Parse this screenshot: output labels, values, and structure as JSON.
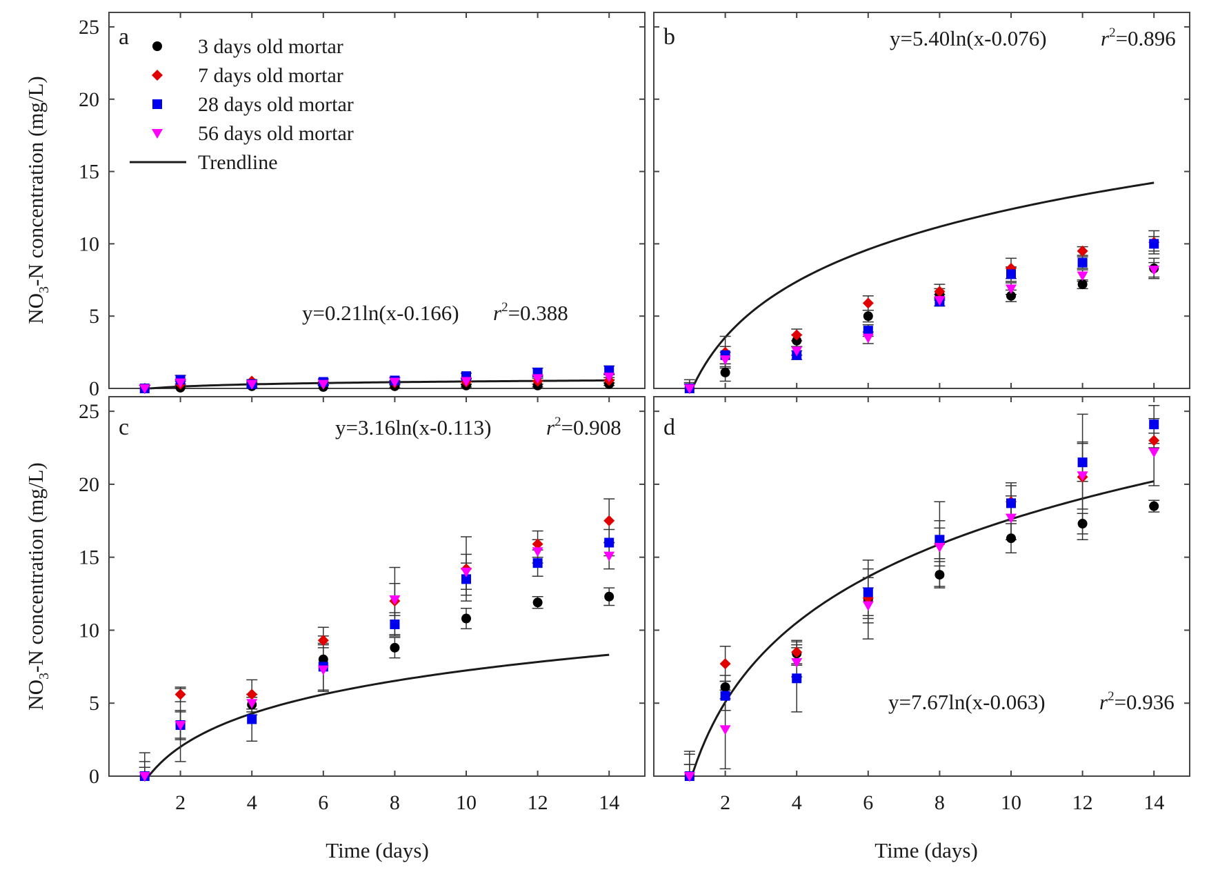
{
  "figure": {
    "y_axis_label_parts": [
      "NO",
      "3",
      "-N concentration (mg/L)"
    ],
    "x_axis_label": "Time (days)",
    "x_ticks": [
      2,
      4,
      6,
      8,
      10,
      12,
      14
    ],
    "y_ticks": [
      0,
      5,
      10,
      15,
      20,
      25
    ],
    "xlim": [
      0,
      15
    ],
    "ylim": [
      0,
      26
    ],
    "legend": [
      {
        "label": "3 days old mortar",
        "marker": "circle",
        "color": "#000000"
      },
      {
        "label": "7 days old mortar",
        "marker": "diamond",
        "color": "#e00000"
      },
      {
        "label": "28 days old mortar",
        "marker": "square",
        "color": "#0000ee"
      },
      {
        "label": "56 days old mortar",
        "marker": "triangle-down",
        "color": "#ff00ff"
      },
      {
        "label": "Trendline",
        "marker": "line",
        "color": "#1a1a1a"
      }
    ]
  },
  "chart_data": [
    {
      "panel": "a",
      "type": "scatter",
      "equation": "y=0.21ln(x-0.166)",
      "r2_prefix": "r",
      "r2_sup": "2",
      "r2_value": "=0.388",
      "fit": {
        "a": 0.21,
        "c": 0.166
      },
      "x": [
        1,
        2,
        4,
        6,
        8,
        10,
        12,
        14
      ],
      "series": [
        {
          "name": "3 days old mortar",
          "values": [
            0.0,
            0.05,
            0.15,
            0.1,
            0.15,
            0.2,
            0.2,
            0.3
          ],
          "err": [
            0.2,
            0.1,
            0.1,
            0.1,
            0.1,
            0.1,
            0.1,
            0.1
          ]
        },
        {
          "name": "7 days old mortar",
          "values": [
            0.0,
            0.3,
            0.5,
            0.35,
            0.4,
            0.45,
            0.5,
            0.55
          ],
          "err": [
            0.2,
            0.2,
            0.1,
            0.1,
            0.1,
            0.2,
            0.2,
            0.2
          ]
        },
        {
          "name": "28 days old mortar",
          "values": [
            0.0,
            0.6,
            0.3,
            0.45,
            0.55,
            0.85,
            1.1,
            1.25
          ],
          "err": [
            0.2,
            0.3,
            0.2,
            0.2,
            0.2,
            0.2,
            0.3,
            0.3
          ]
        },
        {
          "name": "56 days old mortar",
          "values": [
            0.0,
            0.4,
            0.3,
            0.3,
            0.45,
            0.5,
            0.7,
            0.8
          ],
          "err": [
            0.2,
            0.2,
            0.1,
            0.1,
            0.1,
            0.2,
            0.2,
            0.2
          ]
        }
      ]
    },
    {
      "panel": "b",
      "type": "scatter",
      "equation": "y=5.40ln(x-0.076)",
      "r2_prefix": "r",
      "r2_sup": "2",
      "r2_value": "=0.896",
      "fit": {
        "a": 5.4,
        "c": 0.076
      },
      "x": [
        1,
        2,
        4,
        6,
        8,
        10,
        12,
        14
      ],
      "series": [
        {
          "name": "3 days old mortar",
          "values": [
            0.0,
            1.1,
            3.3,
            5.0,
            6.5,
            6.4,
            7.2,
            8.3
          ],
          "err": [
            0.3,
            0.6,
            0.4,
            0.4,
            0.4,
            0.4,
            0.3,
            0.7
          ]
        },
        {
          "name": "7 days old mortar",
          "values": [
            0.0,
            2.5,
            3.7,
            5.9,
            6.7,
            8.3,
            9.5,
            10.1
          ],
          "err": [
            0.6,
            1.1,
            0.4,
            0.5,
            0.5,
            0.7,
            0.3,
            0.8
          ]
        },
        {
          "name": "28 days old mortar",
          "values": [
            0.0,
            2.3,
            2.3,
            4.0,
            6.0,
            7.9,
            8.7,
            10.0
          ],
          "err": [
            0.4,
            0.6,
            0.3,
            0.4,
            0.3,
            0.5,
            0.4,
            0.5
          ]
        },
        {
          "name": "56 days old mortar",
          "values": [
            0.0,
            2.0,
            2.6,
            3.5,
            6.1,
            6.9,
            7.8,
            8.2
          ],
          "err": [
            0.4,
            0.5,
            0.3,
            0.4,
            0.4,
            0.4,
            0.4,
            0.5
          ]
        }
      ]
    },
    {
      "panel": "c",
      "type": "scatter",
      "equation": "y=3.16ln(x-0.113)",
      "r2_prefix": "r",
      "r2_sup": "2",
      "r2_value": "=0.908",
      "fit": {
        "a": 3.16,
        "c": 0.113
      },
      "x": [
        1,
        2,
        4,
        6,
        8,
        10,
        12,
        14
      ],
      "series": [
        {
          "name": "3 days old mortar",
          "values": [
            0.0,
            3.5,
            4.9,
            8.0,
            8.8,
            10.8,
            11.9,
            12.3
          ],
          "err": [
            1.6,
            2.5,
            0.7,
            2.2,
            0.7,
            0.7,
            0.4,
            0.6
          ]
        },
        {
          "name": "7 days old mortar",
          "values": [
            0.0,
            5.6,
            5.6,
            9.3,
            12.0,
            14.2,
            15.9,
            17.5
          ],
          "err": [
            1.0,
            0.5,
            1.0,
            0.3,
            2.3,
            2.2,
            0.9,
            1.5
          ]
        },
        {
          "name": "28 days old mortar",
          "values": [
            0.0,
            3.5,
            3.9,
            7.5,
            10.4,
            13.5,
            14.6,
            16.0
          ],
          "err": [
            0.6,
            1.0,
            1.5,
            1.6,
            0.8,
            1.1,
            0.9,
            0.9
          ]
        },
        {
          "name": "56 days old mortar",
          "values": [
            0.0,
            3.5,
            5.0,
            7.3,
            12.1,
            14.0,
            15.4,
            15.1
          ],
          "err": [
            0.6,
            0.9,
            0.6,
            1.5,
            1.1,
            1.2,
            0.8,
            0.9
          ]
        }
      ]
    },
    {
      "panel": "d",
      "type": "scatter",
      "equation": "y=7.67ln(x-0.063)",
      "r2_prefix": "r",
      "r2_sup": "2",
      "r2_value": "=0.936",
      "fit": {
        "a": 7.67,
        "c": 0.063
      },
      "x": [
        1,
        2,
        4,
        6,
        8,
        10,
        12,
        14
      ],
      "series": [
        {
          "name": "3 days old mortar",
          "values": [
            0.0,
            6.1,
            8.4,
            12.1,
            13.8,
            16.3,
            17.3,
            18.5
          ],
          "err": [
            1.7,
            0.8,
            0.8,
            2.7,
            0.9,
            1.0,
            0.7,
            0.4
          ]
        },
        {
          "name": "7 days old mortar",
          "values": [
            0.0,
            7.7,
            8.5,
            12.2,
            15.9,
            18.8,
            20.5,
            23.0
          ],
          "err": [
            1.5,
            1.2,
            0.8,
            1.4,
            2.9,
            1.3,
            4.3,
            0.5
          ]
        },
        {
          "name": "28 days old mortar",
          "values": [
            0.0,
            5.5,
            6.7,
            12.6,
            16.2,
            18.7,
            21.5,
            24.1
          ],
          "err": [
            0.8,
            1.0,
            2.3,
            1.6,
            1.3,
            1.2,
            1.3,
            1.3
          ]
        },
        {
          "name": "56 days old mortar",
          "values": [
            0.0,
            3.2,
            7.8,
            11.7,
            15.7,
            17.7,
            20.6,
            22.2
          ],
          "err": [
            0.8,
            2.7,
            1.0,
            1.2,
            1.3,
            1.5,
            2.3,
            2.3
          ]
        }
      ]
    }
  ]
}
